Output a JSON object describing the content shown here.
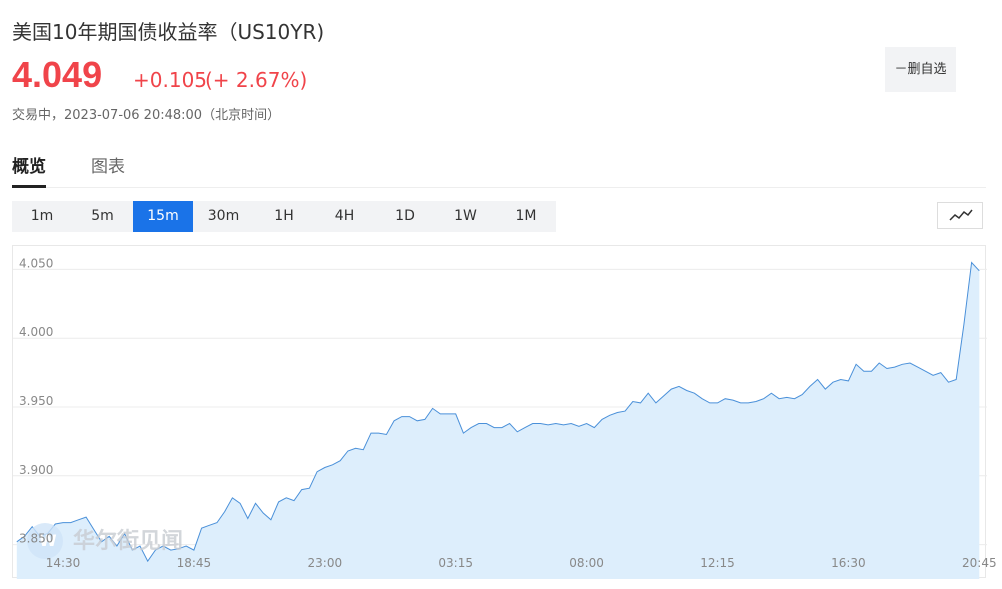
{
  "header": {
    "title": "美国10年期国债收益率（US10YR)",
    "price": "4.049",
    "change": "+0.105",
    "change_pct": "(+ 2.67%)",
    "status": "交易中，2023-07-06 20:48:00（北京时间）",
    "button": "－删自选"
  },
  "tabs": [
    "概览",
    "图表"
  ],
  "active_tab": 0,
  "intervals": [
    "1m",
    "5m",
    "15m",
    "30m",
    "1H",
    "4H",
    "1D",
    "1W",
    "1M"
  ],
  "active_interval": 2,
  "watermark": "华尔街见闻",
  "chart_data": {
    "type": "area",
    "color": "#4a90d9",
    "fill": "#ddeefc",
    "grid": true,
    "ylim": [
      3.825,
      4.067
    ],
    "yticks": [
      {
        "value": 3.85,
        "label": "3.850"
      },
      {
        "value": 3.9,
        "label": "3.900"
      },
      {
        "value": 3.95,
        "label": "3.950"
      },
      {
        "value": 4.0,
        "label": "4.000"
      },
      {
        "value": 4.05,
        "label": "4.050"
      }
    ],
    "categories": [
      null,
      null,
      null,
      null,
      null,
      null,
      "14:30",
      null,
      null,
      null,
      null,
      null,
      null,
      null,
      null,
      null,
      null,
      null,
      null,
      null,
      null,
      null,
      null,
      "18:45",
      null,
      null,
      null,
      null,
      null,
      null,
      null,
      null,
      null,
      null,
      null,
      null,
      null,
      null,
      null,
      null,
      "23:00",
      null,
      null,
      null,
      null,
      null,
      null,
      null,
      null,
      null,
      null,
      null,
      null,
      null,
      null,
      null,
      null,
      "03:15",
      null,
      null,
      null,
      null,
      null,
      null,
      null,
      null,
      null,
      null,
      null,
      null,
      null,
      null,
      null,
      null,
      "08:00",
      null,
      null,
      null,
      null,
      null,
      null,
      null,
      null,
      null,
      null,
      null,
      null,
      null,
      null,
      null,
      null,
      "12:15",
      null,
      null,
      null,
      null,
      null,
      null,
      null,
      null,
      null,
      null,
      null,
      null,
      null,
      null,
      null,
      null,
      "16:30",
      null,
      null,
      null,
      null,
      null,
      null,
      null,
      null,
      null,
      null,
      null,
      null,
      null,
      null,
      null,
      null,
      "20:45"
    ],
    "values": [
      3.852,
      3.856,
      3.863,
      3.856,
      3.858,
      3.865,
      3.866,
      3.866,
      3.868,
      3.87,
      3.861,
      3.852,
      3.856,
      3.849,
      3.858,
      3.846,
      3.849,
      3.838,
      3.846,
      3.849,
      3.846,
      3.847,
      3.849,
      3.846,
      3.862,
      3.864,
      3.866,
      3.874,
      3.884,
      3.88,
      3.869,
      3.88,
      3.873,
      3.868,
      3.881,
      3.884,
      3.882,
      3.89,
      3.891,
      3.903,
      3.906,
      3.908,
      3.911,
      3.918,
      3.92,
      3.919,
      3.931,
      3.931,
      3.93,
      3.94,
      3.943,
      3.943,
      3.94,
      3.941,
      3.949,
      3.945,
      3.945,
      3.945,
      3.931,
      3.935,
      3.938,
      3.938,
      3.935,
      3.935,
      3.938,
      3.932,
      3.935,
      3.938,
      3.938,
      3.937,
      3.938,
      3.937,
      3.938,
      3.936,
      3.938,
      3.935,
      3.941,
      3.944,
      3.946,
      3.947,
      3.954,
      3.953,
      3.96,
      3.953,
      3.958,
      3.963,
      3.965,
      3.962,
      3.96,
      3.956,
      3.953,
      3.953,
      3.956,
      3.955,
      3.953,
      3.953,
      3.954,
      3.956,
      3.96,
      3.956,
      3.957,
      3.956,
      3.959,
      3.965,
      3.97,
      3.963,
      3.968,
      3.97,
      3.969,
      3.981,
      3.976,
      3.976,
      3.982,
      3.978,
      3.979,
      3.981,
      3.982,
      3.979,
      3.976,
      3.973,
      3.975,
      3.968,
      3.97,
      4.01,
      4.055,
      4.049
    ]
  }
}
